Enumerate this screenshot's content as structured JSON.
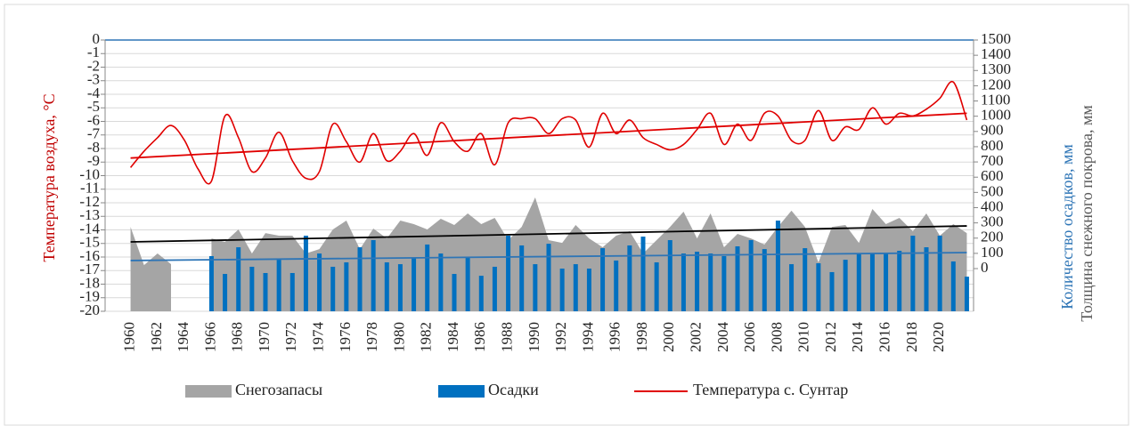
{
  "chart_data": {
    "type": "combo",
    "categories": [
      "1960",
      null,
      "1962",
      null,
      "1964",
      null,
      "1966",
      null,
      "1968",
      null,
      "1970",
      null,
      "1972",
      null,
      "1974",
      null,
      "1976",
      null,
      "1978",
      null,
      "1980",
      null,
      "1982",
      null,
      "1984",
      null,
      "1986",
      null,
      "1988",
      null,
      "1990",
      null,
      "1992",
      null,
      "1994",
      null,
      "1996",
      null,
      "1998",
      null,
      "2000",
      null,
      "2002",
      null,
      "2004",
      null,
      "2006",
      null,
      "2008",
      null,
      "2010",
      null,
      "2012",
      null,
      "2014",
      null,
      "2016",
      null,
      "2018",
      null,
      "2020",
      null,
      null
    ],
    "ylabel": "Температура воздуха, °С",
    "y2labels": [
      "Количество осадков, мм",
      "Толщина снежного покрова, мм"
    ],
    "ylim": [
      -20,
      0
    ],
    "yticks": [
      0,
      -1,
      -2,
      -3,
      -4,
      -5,
      -6,
      -7,
      -8,
      -9,
      -10,
      -11,
      -12,
      -13,
      -14,
      -15,
      -16,
      -17,
      -18,
      -19,
      -20
    ],
    "y2lim": [
      -280,
      1500
    ],
    "y2ticks": [
      0,
      100,
      200,
      300,
      400,
      500,
      600,
      700,
      800,
      900,
      1000,
      1100,
      1200,
      1300,
      1400,
      1500
    ],
    "grid": true,
    "legend": "bottom",
    "series": [
      {
        "name": "Снегозапасы",
        "kind": "area",
        "axis": "y2",
        "color": "#a5a5a5",
        "trend": [
          175,
          280
        ],
        "trend_color": "#000000",
        "values": [
          274,
          23,
          99,
          29,
          null,
          null,
          198,
          175,
          257,
          99,
          233,
          216,
          216,
          99,
          128,
          257,
          315,
          128,
          263,
          198,
          315,
          292,
          257,
          327,
          286,
          362,
          292,
          333,
          187,
          274,
          467,
          187,
          169,
          286,
          198,
          140,
          216,
          245,
          99,
          187,
          274,
          374,
          198,
          362,
          140,
          228,
          198,
          158,
          274,
          380,
          274,
          41,
          274,
          286,
          169,
          391,
          292,
          333,
          245,
          362,
          216,
          292,
          233
        ]
      },
      {
        "name": "Осадки",
        "kind": "bar",
        "axis": "y2",
        "color": "#0070c0",
        "trend": [
          53,
          105
        ],
        "trend_color": "#2e75b6",
        "values": [
          null,
          null,
          null,
          null,
          null,
          null,
          82,
          -35,
          140,
          12,
          -29,
          58,
          -29,
          216,
          99,
          12,
          41,
          140,
          187,
          41,
          29,
          70,
          158,
          99,
          -35,
          70,
          -47,
          12,
          216,
          152,
          29,
          163,
          0,
          29,
          0,
          134,
          53,
          152,
          210,
          41,
          187,
          99,
          111,
          99,
          82,
          146,
          187,
          128,
          315,
          29,
          134,
          35,
          -23,
          58,
          99,
          99,
          99,
          117,
          216,
          140,
          216,
          47,
          -53
        ]
      },
      {
        "name": "Температура с. Сунтар",
        "kind": "line",
        "color": "#e00000",
        "trend": [
          -8.7,
          -5.4
        ],
        "trend_color": "#e00000",
        "values": [
          -9.4,
          -8.2,
          -7.2,
          -6.3,
          -7.4,
          -9.5,
          -10.4,
          -5.6,
          -7.2,
          -9.7,
          -8.7,
          -6.8,
          -8.9,
          -10.2,
          -9.7,
          -6.2,
          -7.5,
          -9.0,
          -6.9,
          -8.9,
          -8.2,
          -6.9,
          -8.5,
          -6.1,
          -7.5,
          -8.2,
          -6.9,
          -9.2,
          -6.1,
          -5.8,
          -5.8,
          -6.9,
          -5.8,
          -5.9,
          -7.9,
          -5.4,
          -6.9,
          -5.9,
          -7.2,
          -7.7,
          -8.1,
          -7.7,
          -6.6,
          -5.4,
          -7.7,
          -6.2,
          -7.4,
          -5.4,
          -5.6,
          -7.4,
          -7.4,
          -5.2,
          -7.4,
          -6.4,
          -6.6,
          -5.0,
          -6.2,
          -5.4,
          -5.6,
          -5.1,
          -4.3,
          -3.1,
          -5.9
        ]
      }
    ]
  }
}
